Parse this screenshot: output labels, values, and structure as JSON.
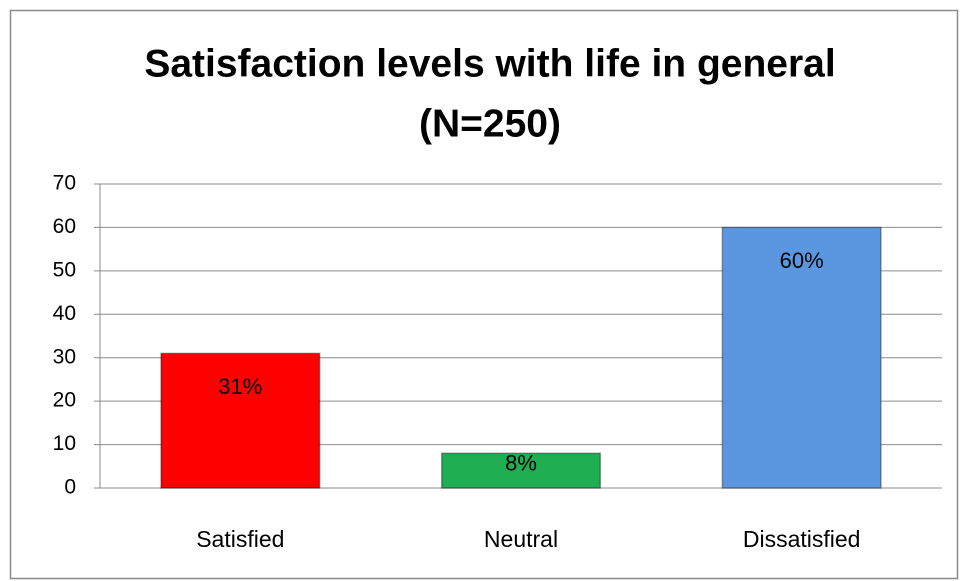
{
  "chart_data": {
    "type": "bar",
    "title": "Satisfaction levels with life in general",
    "subtitle": "(N=250)",
    "categories": [
      "Satisfied",
      "Neutral",
      "Dissatisfied"
    ],
    "values": [
      31,
      8,
      60
    ],
    "value_labels": [
      "31%",
      "8%",
      "60%"
    ],
    "colors": [
      "#ff0000",
      "#1fae52",
      "#5b97e0"
    ],
    "ylim": [
      0,
      70
    ],
    "yticks": [
      0,
      10,
      20,
      30,
      40,
      50,
      60,
      70
    ],
    "grid": true
  }
}
